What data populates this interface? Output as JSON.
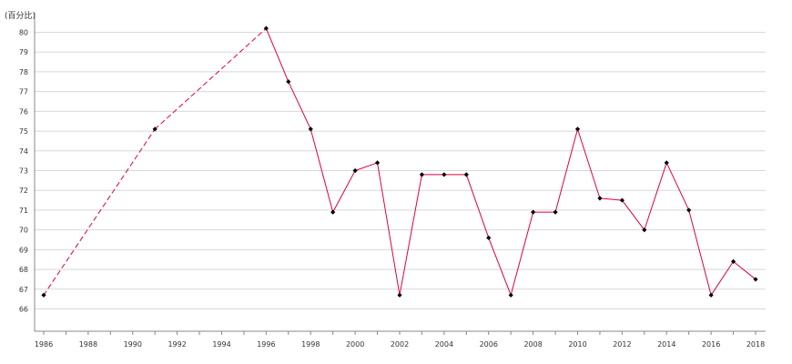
{
  "chart_data": {
    "type": "line",
    "y_unit_label": "(百分比)",
    "x_ticks": [
      "1986",
      "1988",
      "1990",
      "1992",
      "1994",
      "1996",
      "1998",
      "2000",
      "2002",
      "2004",
      "2006",
      "2008",
      "2010",
      "2012",
      "2014",
      "2016",
      "2018"
    ],
    "y_ticks": [
      "66",
      "67",
      "68",
      "69",
      "70",
      "71",
      "72",
      "73",
      "74",
      "75",
      "76",
      "77",
      "78",
      "79",
      "80"
    ],
    "xlim": [
      1986,
      2018
    ],
    "ylim": [
      65,
      81
    ],
    "grid": true,
    "series": [
      {
        "color": "#e0003a",
        "points": [
          {
            "x": 1986,
            "y": 66.7
          },
          {
            "x": 1991,
            "y": 75.1
          },
          {
            "x": 1996,
            "y": 80.2
          },
          {
            "x": 1997,
            "y": 77.5
          },
          {
            "x": 1998,
            "y": 75.1
          },
          {
            "x": 1999,
            "y": 70.9
          },
          {
            "x": 2000,
            "y": 73.0
          },
          {
            "x": 2001,
            "y": 73.4
          },
          {
            "x": 2002,
            "y": 66.7
          },
          {
            "x": 2003,
            "y": 72.8
          },
          {
            "x": 2004,
            "y": 72.8
          },
          {
            "x": 2005,
            "y": 72.8
          },
          {
            "x": 2006,
            "y": 69.6
          },
          {
            "x": 2007,
            "y": 66.7
          },
          {
            "x": 2008,
            "y": 70.9
          },
          {
            "x": 2009,
            "y": 70.9
          },
          {
            "x": 2010,
            "y": 75.1
          },
          {
            "x": 2011,
            "y": 71.6
          },
          {
            "x": 2012,
            "y": 71.5
          },
          {
            "x": 2013,
            "y": 70.0
          },
          {
            "x": 2014,
            "y": 73.4
          },
          {
            "x": 2015,
            "y": 71.0
          },
          {
            "x": 2016,
            "y": 66.7
          },
          {
            "x": 2017,
            "y": 68.4
          },
          {
            "x": 2018,
            "y": 67.5
          }
        ],
        "dashed_until_x": 1996
      }
    ]
  }
}
